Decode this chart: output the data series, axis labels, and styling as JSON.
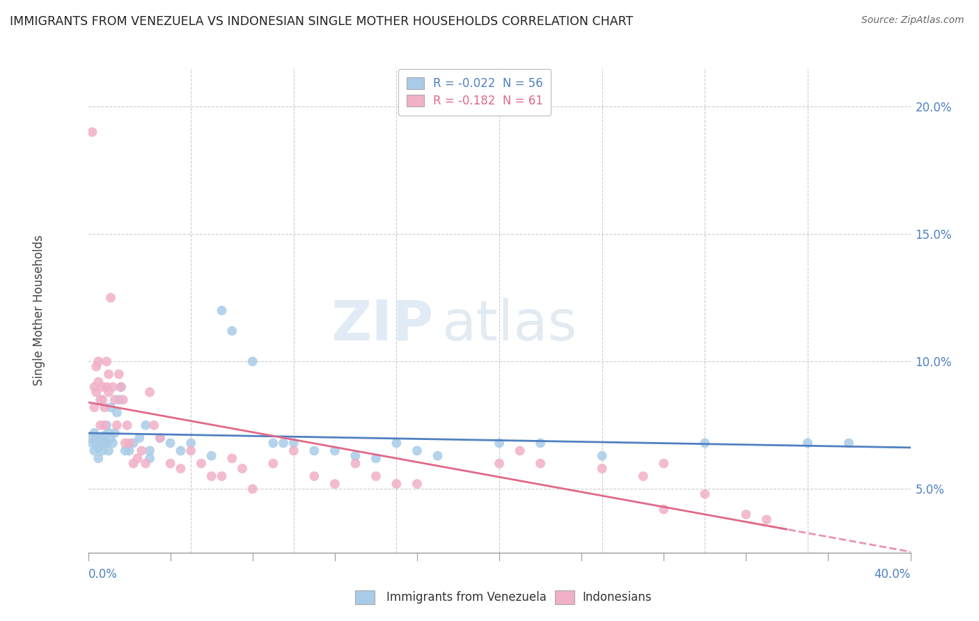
{
  "title": "IMMIGRANTS FROM VENEZUELA VS INDONESIAN SINGLE MOTHER HOUSEHOLDS CORRELATION CHART",
  "source": "Source: ZipAtlas.com",
  "ylabel": "Single Mother Households",
  "xmin": 0.0,
  "xmax": 0.4,
  "ymin": 0.025,
  "ymax": 0.215,
  "yticks": [
    0.05,
    0.1,
    0.15,
    0.2
  ],
  "ytick_labels": [
    "5.0%",
    "10.0%",
    "15.0%",
    "20.0%"
  ],
  "legend_entries": [
    {
      "label": "R = -0.022  N = 56",
      "color": "#a8cce8"
    },
    {
      "label": "R = -0.182  N = 61",
      "color": "#f0b0c8"
    }
  ],
  "blue_color": "#a8cce8",
  "pink_color": "#f0b0c8",
  "blue_line_color": "#5080c0",
  "pink_line_color": "#e06888",
  "blue_scatter": [
    [
      0.001,
      0.07
    ],
    [
      0.002,
      0.068
    ],
    [
      0.003,
      0.072
    ],
    [
      0.003,
      0.065
    ],
    [
      0.004,
      0.07
    ],
    [
      0.004,
      0.068
    ],
    [
      0.005,
      0.066
    ],
    [
      0.005,
      0.062
    ],
    [
      0.006,
      0.07
    ],
    [
      0.006,
      0.068
    ],
    [
      0.007,
      0.07
    ],
    [
      0.007,
      0.065
    ],
    [
      0.008,
      0.068
    ],
    [
      0.008,
      0.071
    ],
    [
      0.009,
      0.075
    ],
    [
      0.009,
      0.068
    ],
    [
      0.01,
      0.072
    ],
    [
      0.01,
      0.065
    ],
    [
      0.011,
      0.082
    ],
    [
      0.011,
      0.07
    ],
    [
      0.012,
      0.068
    ],
    [
      0.013,
      0.072
    ],
    [
      0.014,
      0.08
    ],
    [
      0.015,
      0.085
    ],
    [
      0.016,
      0.09
    ],
    [
      0.018,
      0.065
    ],
    [
      0.02,
      0.065
    ],
    [
      0.022,
      0.068
    ],
    [
      0.025,
      0.07
    ],
    [
      0.028,
      0.075
    ],
    [
      0.03,
      0.065
    ],
    [
      0.03,
      0.062
    ],
    [
      0.035,
      0.07
    ],
    [
      0.04,
      0.068
    ],
    [
      0.045,
      0.065
    ],
    [
      0.05,
      0.068
    ],
    [
      0.06,
      0.063
    ],
    [
      0.065,
      0.12
    ],
    [
      0.07,
      0.112
    ],
    [
      0.08,
      0.1
    ],
    [
      0.09,
      0.068
    ],
    [
      0.095,
      0.068
    ],
    [
      0.1,
      0.068
    ],
    [
      0.11,
      0.065
    ],
    [
      0.12,
      0.065
    ],
    [
      0.13,
      0.063
    ],
    [
      0.14,
      0.062
    ],
    [
      0.15,
      0.068
    ],
    [
      0.16,
      0.065
    ],
    [
      0.17,
      0.063
    ],
    [
      0.2,
      0.068
    ],
    [
      0.22,
      0.068
    ],
    [
      0.25,
      0.063
    ],
    [
      0.3,
      0.068
    ],
    [
      0.35,
      0.068
    ],
    [
      0.37,
      0.068
    ]
  ],
  "pink_scatter": [
    [
      0.002,
      0.19
    ],
    [
      0.003,
      0.09
    ],
    [
      0.003,
      0.082
    ],
    [
      0.004,
      0.098
    ],
    [
      0.004,
      0.088
    ],
    [
      0.005,
      0.1
    ],
    [
      0.005,
      0.092
    ],
    [
      0.006,
      0.085
    ],
    [
      0.006,
      0.075
    ],
    [
      0.007,
      0.09
    ],
    [
      0.007,
      0.085
    ],
    [
      0.008,
      0.082
    ],
    [
      0.008,
      0.075
    ],
    [
      0.009,
      0.1
    ],
    [
      0.009,
      0.09
    ],
    [
      0.01,
      0.095
    ],
    [
      0.01,
      0.088
    ],
    [
      0.011,
      0.125
    ],
    [
      0.012,
      0.09
    ],
    [
      0.013,
      0.085
    ],
    [
      0.014,
      0.075
    ],
    [
      0.015,
      0.095
    ],
    [
      0.016,
      0.09
    ],
    [
      0.017,
      0.085
    ],
    [
      0.018,
      0.068
    ],
    [
      0.019,
      0.075
    ],
    [
      0.02,
      0.068
    ],
    [
      0.022,
      0.06
    ],
    [
      0.024,
      0.062
    ],
    [
      0.026,
      0.065
    ],
    [
      0.028,
      0.06
    ],
    [
      0.03,
      0.088
    ],
    [
      0.032,
      0.075
    ],
    [
      0.035,
      0.07
    ],
    [
      0.04,
      0.06
    ],
    [
      0.045,
      0.058
    ],
    [
      0.05,
      0.065
    ],
    [
      0.055,
      0.06
    ],
    [
      0.06,
      0.055
    ],
    [
      0.065,
      0.055
    ],
    [
      0.07,
      0.062
    ],
    [
      0.075,
      0.058
    ],
    [
      0.08,
      0.05
    ],
    [
      0.09,
      0.06
    ],
    [
      0.1,
      0.065
    ],
    [
      0.11,
      0.055
    ],
    [
      0.12,
      0.052
    ],
    [
      0.13,
      0.06
    ],
    [
      0.14,
      0.055
    ],
    [
      0.15,
      0.052
    ],
    [
      0.16,
      0.052
    ],
    [
      0.2,
      0.06
    ],
    [
      0.21,
      0.065
    ],
    [
      0.22,
      0.06
    ],
    [
      0.25,
      0.058
    ],
    [
      0.27,
      0.055
    ],
    [
      0.28,
      0.042
    ],
    [
      0.3,
      0.048
    ],
    [
      0.32,
      0.04
    ],
    [
      0.33,
      0.038
    ],
    [
      0.28,
      0.06
    ]
  ]
}
